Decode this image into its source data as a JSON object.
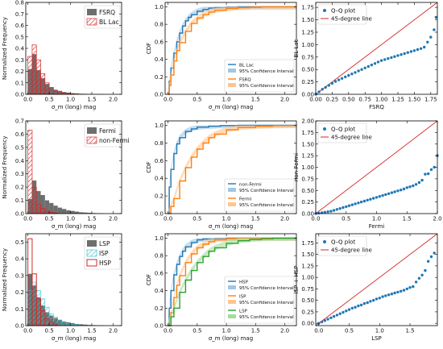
{
  "colors": {
    "grey": "#6e6e6e",
    "red": "#d62728",
    "cyan": "#35c6d6",
    "blue": "#1f77b4",
    "lightblue": "#9ec8e8",
    "orange": "#ff7f0e",
    "lightorange": "#ffc58f",
    "green": "#2ca02c",
    "lightgreen": "#a3dd9c"
  },
  "chart_data": [
    {
      "type": "bar",
      "ylabel": "Normalized Frequency",
      "xlabel": "σ_m (long) mag",
      "xlim": [
        -0.05,
        2.2
      ],
      "ylim": [
        0,
        0.8
      ],
      "xticks": [
        "0.0",
        "0.5",
        "1.0",
        "1.5",
        "2.0"
      ],
      "yticks": [
        "0.0",
        "0.1",
        "0.2",
        "0.3",
        "0.4",
        "0.5",
        "0.6",
        "0.7",
        "0.8"
      ],
      "bin_width": 0.1,
      "legend_position": "top-right",
      "series": [
        {
          "name": "FSRQ",
          "style": "grey-filled",
          "values": [
            0.22,
            0.35,
            0.21,
            0.14,
            0.09,
            0.06,
            0.04,
            0.03,
            0.02,
            0.015,
            0.01,
            0.008,
            0.005,
            0.004,
            0.003,
            0.002,
            0.002,
            0.001
          ]
        },
        {
          "name": "BL Lac",
          "style": "red-hatched",
          "values": [
            0.33,
            0.43,
            0.3,
            0.18,
            0.1,
            0.06,
            0.03,
            0.02,
            0.01,
            0.005,
            0.003
          ]
        }
      ]
    },
    {
      "type": "line",
      "ylabel": "CDF",
      "xlabel": "σ_m (long) mag",
      "xlim": [
        -0.05,
        2.2
      ],
      "ylim": [
        0,
        1.05
      ],
      "xticks": [
        "0.0",
        "0.5",
        "1.0",
        "1.5",
        "2.0"
      ],
      "yticks": [
        "0.0",
        "0.2",
        "0.4",
        "0.6",
        "0.8",
        "1.0"
      ],
      "legend_position": "lower-right",
      "series": [
        {
          "name": "BL Lac",
          "band_label": "95% Confidence Interval",
          "color": "blue",
          "x": [
            0.0,
            0.02,
            0.05,
            0.1,
            0.15,
            0.2,
            0.25,
            0.3,
            0.35,
            0.4,
            0.5,
            0.6,
            0.7,
            0.8,
            1.0,
            1.2,
            1.5,
            2.2
          ],
          "y": [
            0.0,
            0.15,
            0.3,
            0.47,
            0.6,
            0.7,
            0.78,
            0.84,
            0.88,
            0.91,
            0.95,
            0.97,
            0.985,
            0.99,
            0.997,
            1.0,
            1.0,
            1.0
          ]
        },
        {
          "name": "FSRQ",
          "band_label": "95% Confidence Interval",
          "color": "orange",
          "x": [
            0.0,
            0.02,
            0.05,
            0.1,
            0.15,
            0.2,
            0.3,
            0.4,
            0.5,
            0.6,
            0.7,
            0.8,
            1.0,
            1.2,
            1.4,
            1.6,
            2.2
          ],
          "y": [
            0.0,
            0.1,
            0.22,
            0.38,
            0.5,
            0.59,
            0.72,
            0.81,
            0.87,
            0.91,
            0.94,
            0.96,
            0.98,
            0.99,
            0.995,
            1.0,
            1.0
          ]
        }
      ]
    },
    {
      "type": "scatter",
      "xlabel": "FSRQ",
      "ylabel": "BL Lac",
      "xlim": [
        0,
        1.85
      ],
      "ylim": [
        0,
        1.85
      ],
      "xticks": [
        "0.00",
        "0.25",
        "0.50",
        "0.75",
        "1.00",
        "1.25",
        "1.50",
        "1.75"
      ],
      "yticks": [
        "0.00",
        "0.25",
        "0.50",
        "0.75",
        "1.00",
        "1.25",
        "1.50",
        "1.75"
      ],
      "legend_position": "top-left",
      "series": [
        {
          "name": "Q–Q plot",
          "color": "blue",
          "x": [
            0.0,
            0.05,
            0.1,
            0.15,
            0.2,
            0.25,
            0.3,
            0.35,
            0.4,
            0.45,
            0.5,
            0.55,
            0.6,
            0.65,
            0.7,
            0.75,
            0.8,
            0.85,
            0.9,
            0.95,
            1.0,
            1.05,
            1.1,
            1.15,
            1.2,
            1.25,
            1.3,
            1.35,
            1.4,
            1.45,
            1.5,
            1.55,
            1.6,
            1.65,
            1.7,
            1.75,
            1.8,
            1.83
          ],
          "y": [
            0.0,
            0.05,
            0.1,
            0.14,
            0.18,
            0.22,
            0.26,
            0.29,
            0.32,
            0.35,
            0.38,
            0.41,
            0.44,
            0.47,
            0.5,
            0.53,
            0.56,
            0.59,
            0.62,
            0.65,
            0.68,
            0.7,
            0.72,
            0.74,
            0.76,
            0.78,
            0.8,
            0.82,
            0.84,
            0.86,
            0.88,
            0.9,
            0.92,
            0.95,
            1.05,
            1.15,
            1.3,
            1.55
          ]
        },
        {
          "name": "45-degree line",
          "color": "red",
          "x": [
            0,
            1.85
          ],
          "y": [
            0,
            1.85
          ]
        }
      ]
    },
    {
      "type": "bar",
      "ylabel": "Normalized Frequency",
      "xlabel": "σ_m (long) mag",
      "xlim": [
        -0.05,
        2.2
      ],
      "ylim": [
        0,
        0.7
      ],
      "xticks": [
        "0.0",
        "0.5",
        "1.0",
        "1.5",
        "2.0"
      ],
      "yticks": [
        "0.0",
        "0.1",
        "0.2",
        "0.3",
        "0.4",
        "0.5",
        "0.6",
        "0.7"
      ],
      "bin_width": 0.1,
      "legend_position": "top-right",
      "series": [
        {
          "name": "Fermi",
          "style": "grey-filled",
          "values": [
            0.11,
            0.25,
            0.17,
            0.14,
            0.1,
            0.08,
            0.06,
            0.045,
            0.035,
            0.025,
            0.02,
            0.015,
            0.01,
            0.008,
            0.006,
            0.004,
            0.003,
            0.002
          ]
        },
        {
          "name": "non-Fermi",
          "style": "red-hatched",
          "values": [
            0.63,
            0.2,
            0.07,
            0.04,
            0.02,
            0.01,
            0.005
          ]
        }
      ]
    },
    {
      "type": "line",
      "ylabel": "CDF",
      "xlabel": "σ_m (long) mag",
      "xlim": [
        -0.05,
        2.2
      ],
      "ylim": [
        0,
        1.05
      ],
      "xticks": [
        "0.0",
        "0.5",
        "1.0",
        "1.5",
        "2.0"
      ],
      "yticks": [
        "0.0",
        "0.2",
        "0.4",
        "0.6",
        "0.8",
        "1.0"
      ],
      "legend_position": "lower-right",
      "series": [
        {
          "name": "non-Fermi",
          "band_label": "95% Confidence Interval",
          "color": "blue",
          "x": [
            0.0,
            0.02,
            0.05,
            0.1,
            0.15,
            0.2,
            0.3,
            0.4,
            0.5,
            0.7,
            0.9,
            1.2,
            2.2
          ],
          "y": [
            0.0,
            0.3,
            0.5,
            0.68,
            0.79,
            0.86,
            0.93,
            0.96,
            0.98,
            0.99,
            0.997,
            1.0,
            1.0
          ]
        },
        {
          "name": "Fermi",
          "band_label": "95% Confidence Interval",
          "color": "orange",
          "x": [
            0.0,
            0.05,
            0.1,
            0.2,
            0.3,
            0.4,
            0.5,
            0.6,
            0.7,
            0.8,
            1.0,
            1.2,
            1.5,
            1.8,
            2.2
          ],
          "y": [
            0.0,
            0.08,
            0.17,
            0.37,
            0.52,
            0.64,
            0.73,
            0.8,
            0.86,
            0.9,
            0.95,
            0.975,
            0.99,
            0.997,
            1.0
          ]
        }
      ]
    },
    {
      "type": "scatter",
      "xlabel": "Fermi",
      "ylabel": "non-Fermi",
      "xlim": [
        0,
        2.0
      ],
      "ylim": [
        0,
        2.0
      ],
      "xticks": [
        "0.0",
        "0.5",
        "1.0",
        "1.5",
        "2.0"
      ],
      "yticks": [
        "0.00",
        "0.25",
        "0.50",
        "0.75",
        "1.00",
        "1.25",
        "1.50",
        "1.75",
        "2.00"
      ],
      "legend_position": "top-left",
      "series": [
        {
          "name": "Q–Q plot",
          "color": "blue",
          "x": [
            0.0,
            0.05,
            0.1,
            0.15,
            0.2,
            0.25,
            0.3,
            0.35,
            0.4,
            0.45,
            0.5,
            0.55,
            0.6,
            0.65,
            0.7,
            0.75,
            0.8,
            0.85,
            0.9,
            0.95,
            1.0,
            1.05,
            1.1,
            1.15,
            1.2,
            1.25,
            1.3,
            1.35,
            1.4,
            1.45,
            1.5,
            1.55,
            1.6,
            1.65,
            1.7,
            1.75,
            1.8,
            1.85,
            1.9,
            1.95,
            2.0
          ],
          "y": [
            0.0,
            0.01,
            0.02,
            0.03,
            0.04,
            0.05,
            0.07,
            0.09,
            0.11,
            0.13,
            0.15,
            0.17,
            0.19,
            0.21,
            0.23,
            0.25,
            0.27,
            0.29,
            0.31,
            0.33,
            0.35,
            0.37,
            0.39,
            0.41,
            0.43,
            0.45,
            0.47,
            0.49,
            0.51,
            0.53,
            0.56,
            0.58,
            0.6,
            0.63,
            0.67,
            0.72,
            0.85,
            0.86,
            0.95,
            1.0,
            1.25
          ]
        },
        {
          "name": "45-degree line",
          "color": "red",
          "x": [
            0,
            2.0
          ],
          "y": [
            0,
            2.0
          ]
        }
      ]
    },
    {
      "type": "bar",
      "ylabel": "Normalized Frequency",
      "xlabel": "σ_m (long) mag",
      "xlim": [
        -0.05,
        2.2
      ],
      "ylim": [
        0,
        0.55
      ],
      "xticks": [
        "0.0",
        "0.5",
        "1.0",
        "1.5",
        "2.0"
      ],
      "yticks": [
        "0.0",
        "0.1",
        "0.2",
        "0.3",
        "0.4",
        "0.5"
      ],
      "bin_width": 0.1,
      "legend_position": "top-right",
      "series": [
        {
          "name": "LSP",
          "style": "grey-filled",
          "values": [
            0.31,
            0.24,
            0.17,
            0.12,
            0.08,
            0.06,
            0.045,
            0.035,
            0.025,
            0.02,
            0.015,
            0.01,
            0.008,
            0.006,
            0.004,
            0.003,
            0.002,
            0.002
          ]
        },
        {
          "name": "ISP",
          "style": "cyan-hatched",
          "values": [
            0.21,
            0.26,
            0.21,
            0.16,
            0.11,
            0.07,
            0.05,
            0.03,
            0.02,
            0.012,
            0.008,
            0.005
          ]
        },
        {
          "name": "HSP",
          "style": "red-outline",
          "values": [
            0.52,
            0.31,
            0.16,
            0.09,
            0.04,
            0.02,
            0.01
          ]
        }
      ]
    },
    {
      "type": "line",
      "ylabel": "CDF",
      "xlabel": "σ_m (long) mag",
      "xlim": [
        -0.05,
        2.2
      ],
      "ylim": [
        0,
        1.05
      ],
      "xticks": [
        "0.0",
        "0.5",
        "1.0",
        "1.5",
        "2.0"
      ],
      "yticks": [
        "0.0",
        "0.2",
        "0.4",
        "0.6",
        "0.8",
        "1.0"
      ],
      "legend_position": "lower-right",
      "series": [
        {
          "name": "HSP",
          "band_label": "95% Confidence Interval",
          "color": "blue",
          "x": [
            0.0,
            0.02,
            0.05,
            0.1,
            0.15,
            0.2,
            0.25,
            0.3,
            0.4,
            0.5,
            0.6,
            0.8,
            1.0,
            2.2
          ],
          "y": [
            0.0,
            0.2,
            0.4,
            0.58,
            0.7,
            0.79,
            0.85,
            0.9,
            0.95,
            0.98,
            0.99,
            0.997,
            1.0,
            1.0
          ]
        },
        {
          "name": "ISP",
          "band_label": "95% Confidence Interval",
          "color": "orange",
          "x": [
            0.0,
            0.05,
            0.1,
            0.15,
            0.2,
            0.3,
            0.4,
            0.5,
            0.6,
            0.7,
            0.8,
            1.0,
            1.2,
            2.2
          ],
          "y": [
            0.0,
            0.15,
            0.32,
            0.46,
            0.57,
            0.72,
            0.82,
            0.89,
            0.93,
            0.96,
            0.98,
            0.995,
            1.0,
            1.0
          ]
        },
        {
          "name": "LSP",
          "band_label": "95% Confidence Interval",
          "color": "green",
          "x": [
            0.0,
            0.05,
            0.1,
            0.2,
            0.3,
            0.4,
            0.5,
            0.6,
            0.7,
            0.8,
            1.0,
            1.2,
            1.4,
            1.6,
            1.8,
            2.2
          ],
          "y": [
            0.0,
            0.1,
            0.2,
            0.38,
            0.52,
            0.63,
            0.72,
            0.79,
            0.85,
            0.89,
            0.94,
            0.97,
            0.985,
            0.993,
            0.998,
            1.0
          ]
        }
      ]
    },
    {
      "type": "scatter",
      "xlabel": "LSP",
      "ylabel": "ISP + HSP",
      "xlim": [
        -0.05,
        1.95
      ],
      "ylim": [
        -0.05,
        1.95
      ],
      "xticks": [
        "0.0",
        "0.5",
        "1.0",
        "1.5"
      ],
      "yticks": [
        "0.00",
        "0.25",
        "0.50",
        "0.75",
        "1.00",
        "1.25",
        "1.50",
        "1.75"
      ],
      "legend_position": "top-left",
      "series": [
        {
          "name": "Q–Q plot",
          "color": "blue",
          "x": [
            0.0,
            0.05,
            0.1,
            0.15,
            0.2,
            0.25,
            0.3,
            0.35,
            0.4,
            0.45,
            0.5,
            0.55,
            0.6,
            0.65,
            0.7,
            0.75,
            0.8,
            0.85,
            0.9,
            0.95,
            1.0,
            1.05,
            1.1,
            1.15,
            1.2,
            1.25,
            1.3,
            1.35,
            1.4,
            1.45,
            1.5,
            1.55,
            1.6,
            1.65,
            1.7,
            1.75,
            1.8,
            1.85,
            1.9
          ],
          "y": [
            0.0,
            0.03,
            0.06,
            0.09,
            0.12,
            0.15,
            0.18,
            0.21,
            0.24,
            0.27,
            0.3,
            0.33,
            0.35,
            0.38,
            0.4,
            0.43,
            0.45,
            0.48,
            0.5,
            0.53,
            0.55,
            0.58,
            0.6,
            0.62,
            0.64,
            0.66,
            0.68,
            0.7,
            0.72,
            0.75,
            0.78,
            0.8,
            0.9,
            0.98,
            1.05,
            1.15,
            1.35,
            1.45,
            1.53
          ]
        },
        {
          "name": "45-degree line",
          "color": "red",
          "x": [
            -0.05,
            1.95
          ],
          "y": [
            -0.05,
            1.95
          ]
        }
      ]
    }
  ]
}
